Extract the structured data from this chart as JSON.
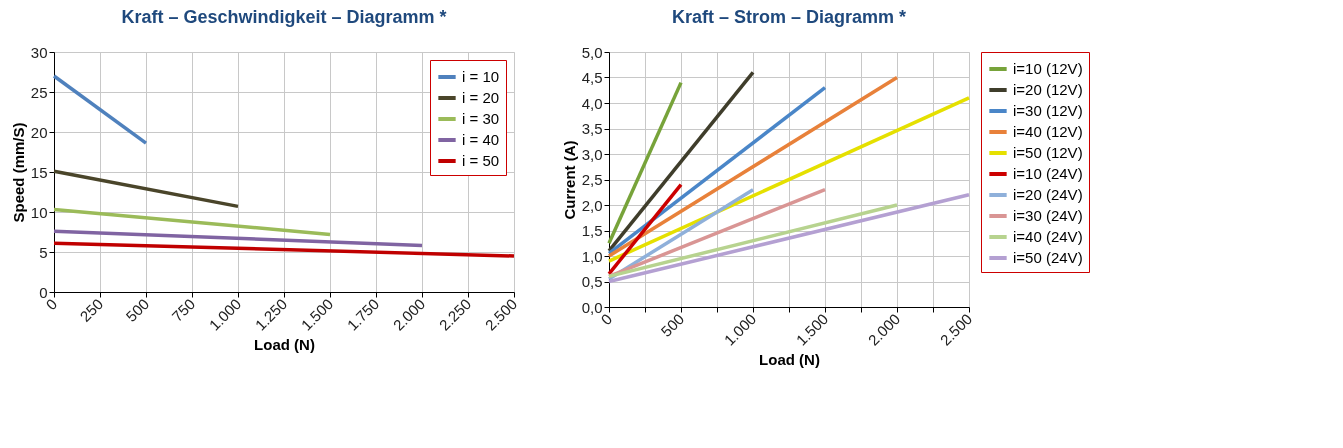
{
  "chart_data": [
    {
      "type": "line",
      "title": "Kraft – Geschwindigkeit – Diagramm *",
      "xlabel": "Load (N)",
      "ylabel": "Speed (mm/S)",
      "xlim": [
        0,
        2500
      ],
      "xticks": [
        0,
        250,
        500,
        750,
        {
          "value": 1000,
          "label": "1.000"
        },
        {
          "value": 1250,
          "label": "1.250"
        },
        {
          "value": 1500,
          "label": "1.500"
        },
        {
          "value": 1750,
          "label": "1.750"
        },
        {
          "value": 2000,
          "label": "2.000"
        },
        {
          "value": 2250,
          "label": "2.250"
        },
        {
          "value": 2500,
          "label": "2.500"
        }
      ],
      "ylim": [
        0,
        30
      ],
      "yticks": [
        0,
        5,
        10,
        15,
        20,
        25,
        30
      ],
      "grid": true,
      "legend": "top right",
      "series": [
        {
          "name": "i = 10",
          "color": "#4f81bd",
          "x": [
            0,
            500
          ],
          "values": [
            27,
            18.6
          ]
        },
        {
          "name": "i = 20",
          "color": "#4a452a",
          "x": [
            0,
            1000
          ],
          "values": [
            15.1,
            10.7
          ]
        },
        {
          "name": "i = 30",
          "color": "#9bbb59",
          "x": [
            0,
            1500
          ],
          "values": [
            10.3,
            7.2
          ]
        },
        {
          "name": "i = 40",
          "color": "#8064a2",
          "x": [
            0,
            2000
          ],
          "values": [
            7.6,
            5.8
          ]
        },
        {
          "name": "i = 50",
          "color": "#c00000",
          "x": [
            0,
            2500
          ],
          "values": [
            6.1,
            4.5
          ]
        }
      ]
    },
    {
      "type": "line",
      "title": "Kraft – Strom – Diagramm *",
      "xlabel": "Load (N)",
      "ylabel": "Current (A)",
      "xlim": [
        0,
        2500
      ],
      "xticks": [
        0,
        {
          "value": 250,
          "label": null
        },
        500,
        {
          "value": 750,
          "label": null
        },
        {
          "value": 1000,
          "label": "1.000"
        },
        {
          "value": 1250,
          "label": null
        },
        {
          "value": 1500,
          "label": "1.500"
        },
        {
          "value": 1750,
          "label": null
        },
        {
          "value": 2000,
          "label": "2.000"
        },
        {
          "value": 2250,
          "label": null
        },
        {
          "value": 2500,
          "label": "2.500"
        }
      ],
      "ylim": [
        0,
        5
      ],
      "yticks": [
        {
          "value": 0,
          "label": "0,0"
        },
        {
          "value": 0.5,
          "label": "0,5"
        },
        {
          "value": 1,
          "label": "1,0"
        },
        {
          "value": 1.5,
          "label": "1,5"
        },
        {
          "value": 2,
          "label": "2,0"
        },
        {
          "value": 2.5,
          "label": "2,5"
        },
        {
          "value": 3,
          "label": "3,0"
        },
        {
          "value": 3.5,
          "label": "3,5"
        },
        {
          "value": 4,
          "label": "4,0"
        },
        {
          "value": 4.5,
          "label": "4,5"
        },
        {
          "value": 5,
          "label": "5,0"
        }
      ],
      "grid": true,
      "legend": "right",
      "series": [
        {
          "name": "i=10 (12V)",
          "color": "#77a33a",
          "x": [
            0,
            500
          ],
          "values": [
            1.25,
            4.4
          ]
        },
        {
          "name": "i=20 (12V)",
          "color": "#3f3d2b",
          "x": [
            0,
            1000
          ],
          "values": [
            1.1,
            4.6
          ]
        },
        {
          "name": "i=30 (12V)",
          "color": "#4a86c8",
          "x": [
            0,
            1500
          ],
          "values": [
            1.05,
            4.3
          ]
        },
        {
          "name": "i=40 (12V)",
          "color": "#e8813a",
          "x": [
            0,
            2000
          ],
          "values": [
            1.0,
            4.5
          ]
        },
        {
          "name": "i=50 (12V)",
          "color": "#e5e000",
          "x": [
            0,
            2500
          ],
          "values": [
            0.9,
            4.1
          ]
        },
        {
          "name": "i=10 (24V)",
          "color": "#cc0000",
          "x": [
            0,
            500
          ],
          "values": [
            0.65,
            2.4
          ]
        },
        {
          "name": "i=20 (24V)",
          "color": "#8fb0da",
          "x": [
            0,
            1000
          ],
          "values": [
            0.55,
            2.3
          ]
        },
        {
          "name": "i=30 (24V)",
          "color": "#d99594",
          "x": [
            0,
            1500
          ],
          "values": [
            0.6,
            2.3
          ]
        },
        {
          "name": "i=40 (24V)",
          "color": "#b7d38f",
          "x": [
            0,
            2000
          ],
          "values": [
            0.6,
            2.0
          ]
        },
        {
          "name": "i=50 (24V)",
          "color": "#b4a0d2",
          "x": [
            0,
            2500
          ],
          "values": [
            0.5,
            2.2
          ]
        }
      ]
    }
  ]
}
